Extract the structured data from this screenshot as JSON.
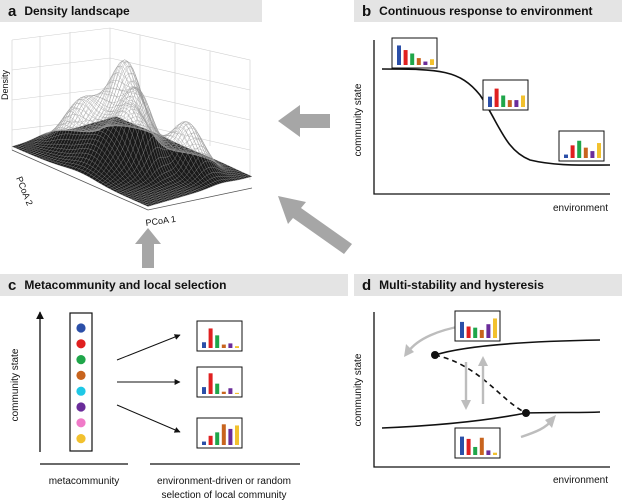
{
  "panels": {
    "a": {
      "letter": "a",
      "title": "Density landscape",
      "z_label": "Density",
      "x_label": "PCoA 1",
      "y_label": "PCoA 2"
    },
    "b": {
      "letter": "b",
      "title": "Continuous response to environment",
      "y_label": "community state",
      "x_label": "environment"
    },
    "c": {
      "letter": "c",
      "title": "Metacommunity and local selection",
      "y_label": "community state",
      "x_label_left": "metacommunity",
      "x_label_right_line1": "environment-driven or random",
      "x_label_right_line2": "selection of local community"
    },
    "d": {
      "letter": "d",
      "title": "Multi-stability and hysteresis",
      "y_label": "community state",
      "x_label": "environment"
    }
  },
  "colors": {
    "header_bg": "#e4e4e4",
    "arrow_gray": "#a6a6a6",
    "bar_blue": "#2b4fa8",
    "bar_red": "#e02020",
    "bar_green": "#1fa64a",
    "bar_orange": "#c8641e",
    "bar_purple": "#6a2c9a",
    "bar_yellow": "#f2c12e",
    "bar_cyan": "#1ec8e6",
    "bar_pink": "#f07ac8"
  },
  "metacommunity_dots": [
    "blue",
    "red",
    "green",
    "orange",
    "cyan",
    "purple",
    "pink",
    "yellow"
  ]
}
